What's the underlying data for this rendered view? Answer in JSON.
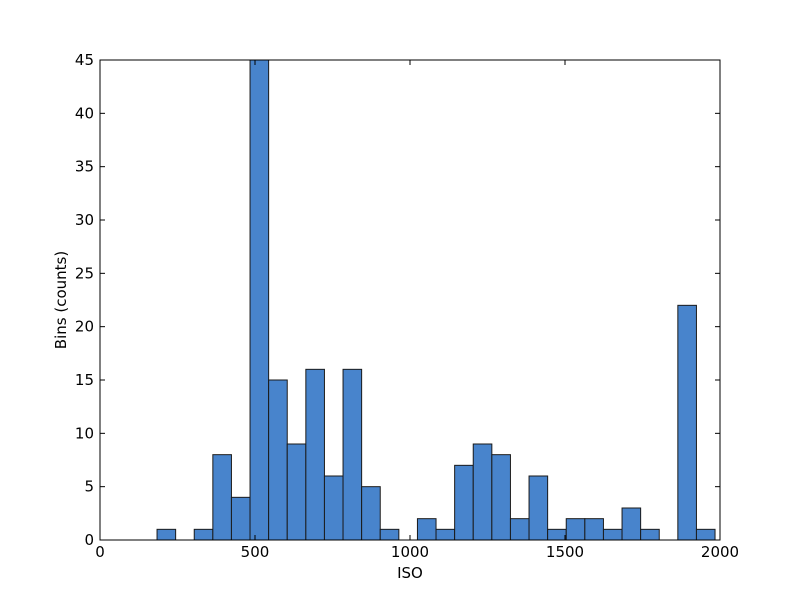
{
  "chart_data": {
    "type": "histogram",
    "xlabel": "ISO",
    "ylabel": "Bins (counts)",
    "bins": [
      184,
      244,
      304,
      364,
      424,
      484,
      544,
      604,
      664,
      724,
      784,
      844,
      904,
      964,
      1024,
      1084,
      1144,
      1204,
      1264,
      1324,
      1384,
      1444,
      1504,
      1564,
      1624,
      1684,
      1744,
      1804,
      1864,
      1924,
      1984
    ],
    "values": [
      1,
      0,
      1,
      8,
      4,
      45,
      15,
      9,
      16,
      6,
      16,
      5,
      1,
      0,
      2,
      1,
      7,
      9,
      8,
      2,
      6,
      1,
      2,
      2,
      1,
      3,
      1,
      0,
      22,
      1
    ],
    "color": "#4884cc",
    "edgecolor": "#1a1a1a",
    "xlim": [
      0,
      2000
    ],
    "xticks": [
      0,
      500,
      1000,
      1500,
      2000
    ],
    "ylim": [
      0,
      45
    ],
    "yticks": [
      0,
      5,
      10,
      15,
      20,
      25,
      30,
      35,
      40,
      45
    ]
  }
}
